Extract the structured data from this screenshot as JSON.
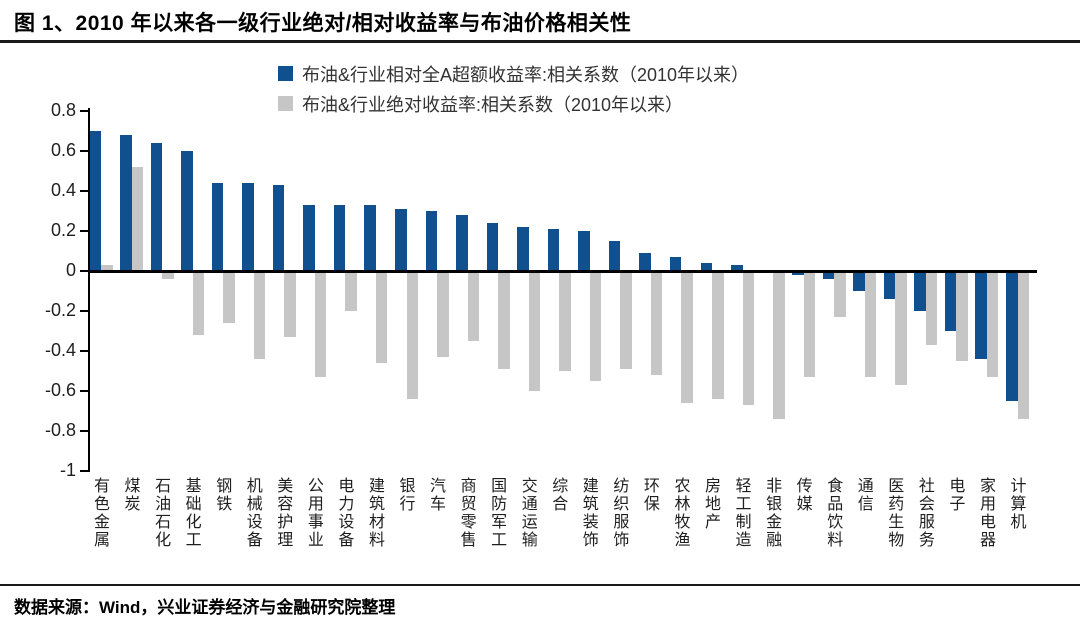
{
  "header": {
    "title": "图 1、2010 年以来各一级行业绝对/相对收益率与布油价格相关性"
  },
  "footer": {
    "source": "数据来源：Wind，兴业证券经济与金融研究院整理"
  },
  "colors": {
    "relative_series": "#11508f",
    "absolute_series": "#c6c6c6",
    "axis": "#000000",
    "rule": "#1a1a1a"
  },
  "chart_data": {
    "type": "bar",
    "title": "",
    "xlabel": "",
    "ylabel": "",
    "ylim": [
      -1,
      0.8
    ],
    "grid": false,
    "legend_position": "top-center",
    "ytick_labels": [
      "0.8",
      "0.6",
      "0.4",
      "0.2",
      "0",
      "-0.2",
      "-0.4",
      "-0.6",
      "-0.8",
      "-1"
    ],
    "categories": [
      "有色金属",
      "煤炭",
      "石油石化",
      "基础化工",
      "钢铁",
      "机械设备",
      "美容护理",
      "公用事业",
      "电力设备",
      "建筑材料",
      "银行",
      "汽车",
      "商贸零售",
      "国防军工",
      "交通运输",
      "综合",
      "建筑装饰",
      "纺织服饰",
      "环保",
      "农林牧渔",
      "房地产",
      "轻工制造",
      "非银金融",
      "传媒",
      "食品饮料",
      "通信",
      "医药生物",
      "社会服务",
      "电子",
      "家用电器",
      "计算机"
    ],
    "series": [
      {
        "name": "布油&行业相对全A超额收益率:相关系数（2010年以来）",
        "color": "#11508f",
        "values": [
          0.7,
          0.68,
          0.64,
          0.6,
          0.44,
          0.44,
          0.43,
          0.33,
          0.33,
          0.33,
          0.31,
          0.3,
          0.28,
          0.24,
          0.22,
          0.21,
          0.2,
          0.15,
          0.09,
          0.07,
          0.04,
          0.03,
          0.0,
          -0.02,
          -0.04,
          -0.1,
          -0.14,
          -0.2,
          -0.3,
          -0.44,
          -0.65
        ]
      },
      {
        "name": "布油&行业绝对收益率:相关系数（2010年以来）",
        "color": "#c6c6c6",
        "values": [
          0.03,
          0.52,
          -0.04,
          -0.32,
          -0.26,
          -0.44,
          -0.33,
          -0.53,
          -0.2,
          -0.46,
          -0.64,
          -0.43,
          -0.35,
          -0.49,
          -0.6,
          -0.5,
          -0.55,
          -0.49,
          -0.52,
          -0.66,
          -0.64,
          -0.67,
          -0.74,
          -0.53,
          -0.23,
          -0.53,
          -0.57,
          -0.37,
          -0.45,
          -0.53,
          -0.74
        ]
      }
    ]
  }
}
